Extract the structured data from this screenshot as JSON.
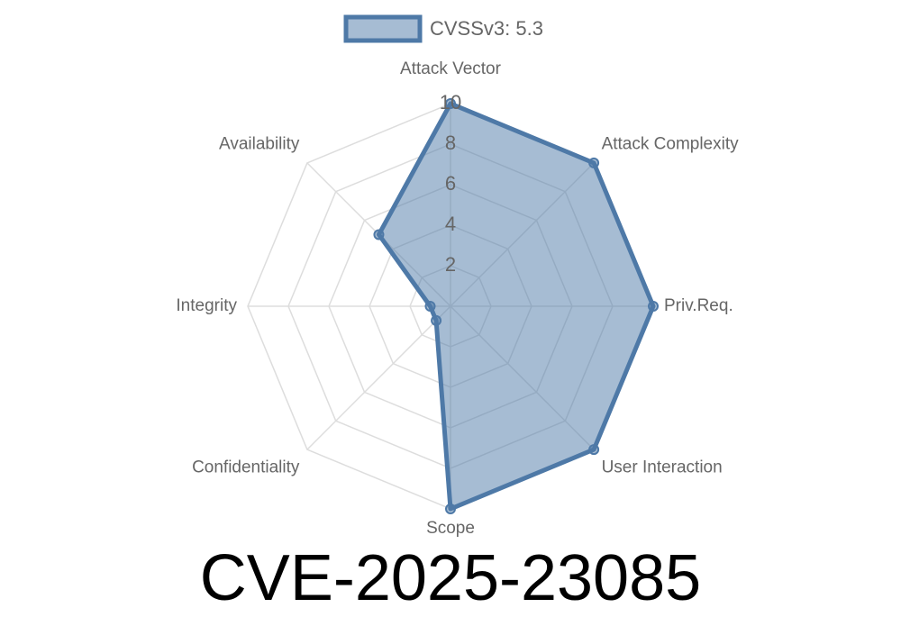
{
  "chart_data": {
    "type": "radar",
    "title": "CVE-2025-23085",
    "categories": [
      "Attack Vector",
      "Attack Complexity",
      "Priv.Req.",
      "User Interaction",
      "Scope",
      "Confidentiality",
      "Integrity",
      "Availability"
    ],
    "series": [
      {
        "name": "CVSSv3: 5.3",
        "color": "#4e79a7",
        "values": [
          10,
          10,
          10,
          10,
          10,
          1,
          1,
          5
        ]
      }
    ],
    "ylim": [
      0,
      10
    ],
    "yticks": [
      2,
      4,
      6,
      8,
      10
    ],
    "grid": true,
    "legend": "top"
  }
}
